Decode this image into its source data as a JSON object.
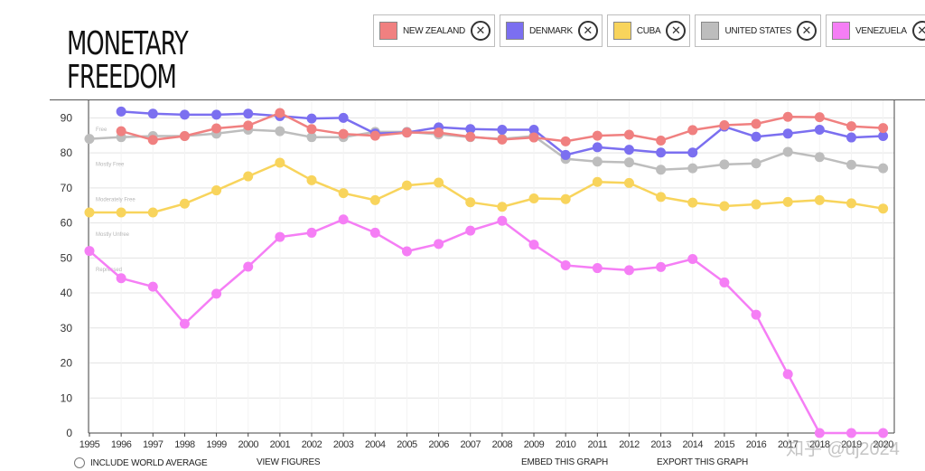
{
  "header": {
    "title_line1": "MONETARY",
    "title_line2": "FREEDOM"
  },
  "legend": [
    {
      "label": "NEW ZEALAND",
      "color": "#f08080",
      "icon": "close-icon"
    },
    {
      "label": "DENMARK",
      "color": "#7b6ff0",
      "icon": "close-icon"
    },
    {
      "label": "CUBA",
      "color": "#f8d45c",
      "icon": "close-icon"
    },
    {
      "label": "UNITED STATES",
      "color": "#bdbdbd",
      "icon": "close-icon"
    },
    {
      "label": "VENEZUELA",
      "color": "#f57ef5",
      "icon": "close-icon"
    }
  ],
  "footer": {
    "world_average": "INCLUDE WORLD AVERAGE",
    "view_figures": "VIEW FIGURES",
    "embed": "EMBED THIS GRAPH",
    "export": "EXPORT THIS GRAPH"
  },
  "watermark": "知乎 @dj2024",
  "chart_data": {
    "type": "line",
    "title": "MONETARY FREEDOM",
    "xlabel": "",
    "ylabel": "",
    "ylim": [
      0,
      95
    ],
    "yticks": [
      0,
      10,
      20,
      30,
      40,
      50,
      60,
      70,
      80,
      90
    ],
    "grid": true,
    "bands": [
      {
        "label": "Free",
        "value": 80
      },
      {
        "label": "Mostly Free",
        "value": 70
      },
      {
        "label": "Moderately Free",
        "value": 60
      },
      {
        "label": "Mostly Unfree",
        "value": 50
      },
      {
        "label": "Repressed",
        "value": 40
      }
    ],
    "x": [
      "1995",
      "1996",
      "1997",
      "1998",
      "1999",
      "2000",
      "2001",
      "2002",
      "2003",
      "2004",
      "2005",
      "2006",
      "2007",
      "2008",
      "2009",
      "2010",
      "2011",
      "2012",
      "2013",
      "2014",
      "2015",
      "2016",
      "2017",
      "2018",
      "2019",
      "2020"
    ],
    "series": [
      {
        "name": "UNITED STATES",
        "color": "#bdbdbd",
        "values": [
          84,
          84.5,
          84.8,
          84.8,
          85.5,
          86.6,
          86.2,
          84.5,
          84.5,
          86,
          86,
          85.3,
          84.5,
          84,
          84.8,
          78.3,
          77.5,
          77.3,
          75.2,
          75.6,
          76.7,
          77,
          80.3,
          78.8,
          76.6,
          75.6
        ]
      },
      {
        "name": "CUBA",
        "color": "#f8d45c",
        "values": [
          63,
          63,
          63,
          65.5,
          69.3,
          73.3,
          77.2,
          72.2,
          68.5,
          66.5,
          70.7,
          71.5,
          65.9,
          64.6,
          67,
          66.8,
          71.7,
          71.4,
          67.4,
          65.8,
          64.8,
          65.3,
          66,
          66.5,
          65.6,
          64.1
        ]
      },
      {
        "name": "VENEZUELA",
        "color": "#f57ef5",
        "values": [
          52,
          44.2,
          41.8,
          31.2,
          39.8,
          47.5,
          56,
          57.2,
          61,
          57.2,
          51.9,
          54,
          57.8,
          60.6,
          53.8,
          47.9,
          47.1,
          46.5,
          47.4,
          49.7,
          43,
          33.8,
          16.8,
          0,
          0,
          0
        ]
      },
      {
        "name": "DENMARK",
        "color": "#7b6ff0",
        "values": [
          null,
          91.8,
          91.2,
          90.9,
          90.9,
          91.2,
          90.5,
          89.8,
          90,
          85.5,
          85.8,
          87.3,
          86.8,
          86.6,
          86.6,
          79.4,
          81.6,
          80.9,
          80.1,
          80.1,
          87.5,
          84.6,
          85.5,
          86.6,
          84.4,
          84.8
        ]
      },
      {
        "name": "NEW ZEALAND",
        "color": "#f08080",
        "values": [
          null,
          86.2,
          83.7,
          84.8,
          87,
          87.8,
          91.4,
          86.8,
          85.4,
          84.9,
          85.8,
          85.8,
          84.6,
          83.8,
          84.4,
          83.3,
          84.9,
          85.2,
          83.5,
          86.5,
          87.9,
          88.3,
          90.3,
          90.2,
          87.6,
          87.1
        ]
      }
    ]
  }
}
